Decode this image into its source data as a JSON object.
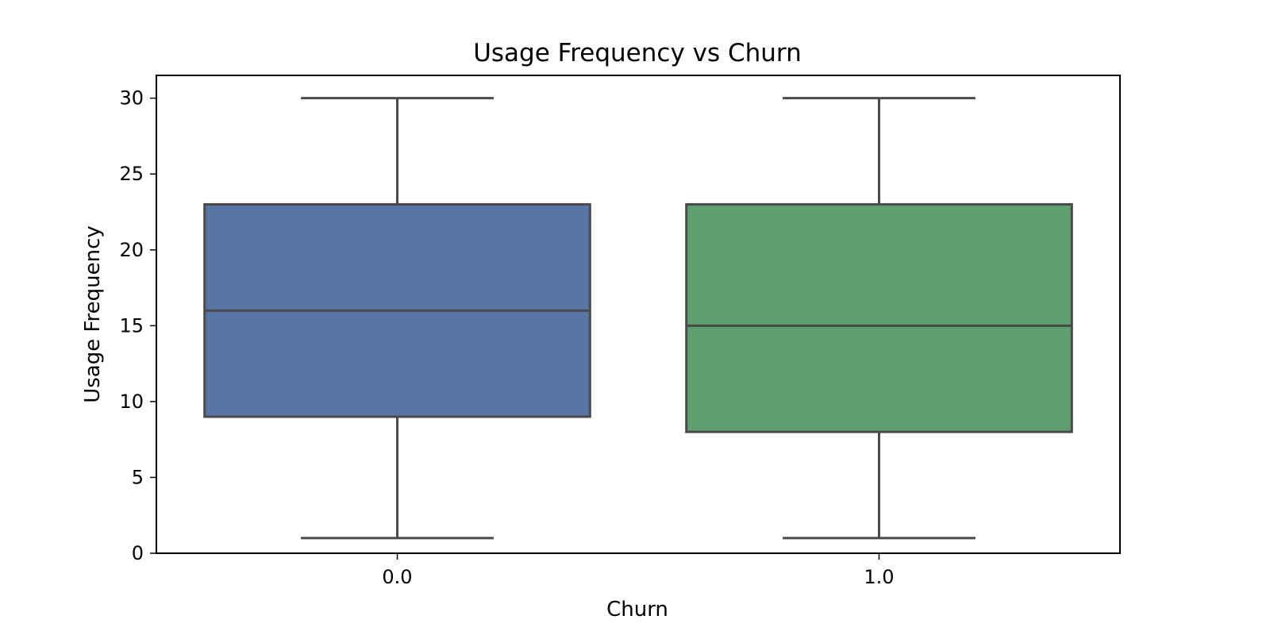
{
  "chart_data": {
    "type": "boxplot",
    "title": "Usage Frequency vs Churn",
    "xlabel": "Churn",
    "ylabel": "Usage Frequency",
    "categories": [
      "0.0",
      "1.0"
    ],
    "ylim": [
      0,
      31.5
    ],
    "yticks": [
      0,
      5,
      10,
      15,
      20,
      25,
      30
    ],
    "grid": false,
    "boxes": [
      {
        "category": "0.0",
        "whisker_low": 1,
        "q1": 9,
        "median": 16,
        "q3": 23,
        "whisker_high": 30,
        "color": "#5875a4"
      },
      {
        "category": "1.0",
        "whisker_low": 1,
        "q1": 8,
        "median": 15,
        "q3": 23,
        "whisker_high": 30,
        "color": "#5f9e6e"
      }
    ],
    "line_color": "#4a4a4a"
  }
}
